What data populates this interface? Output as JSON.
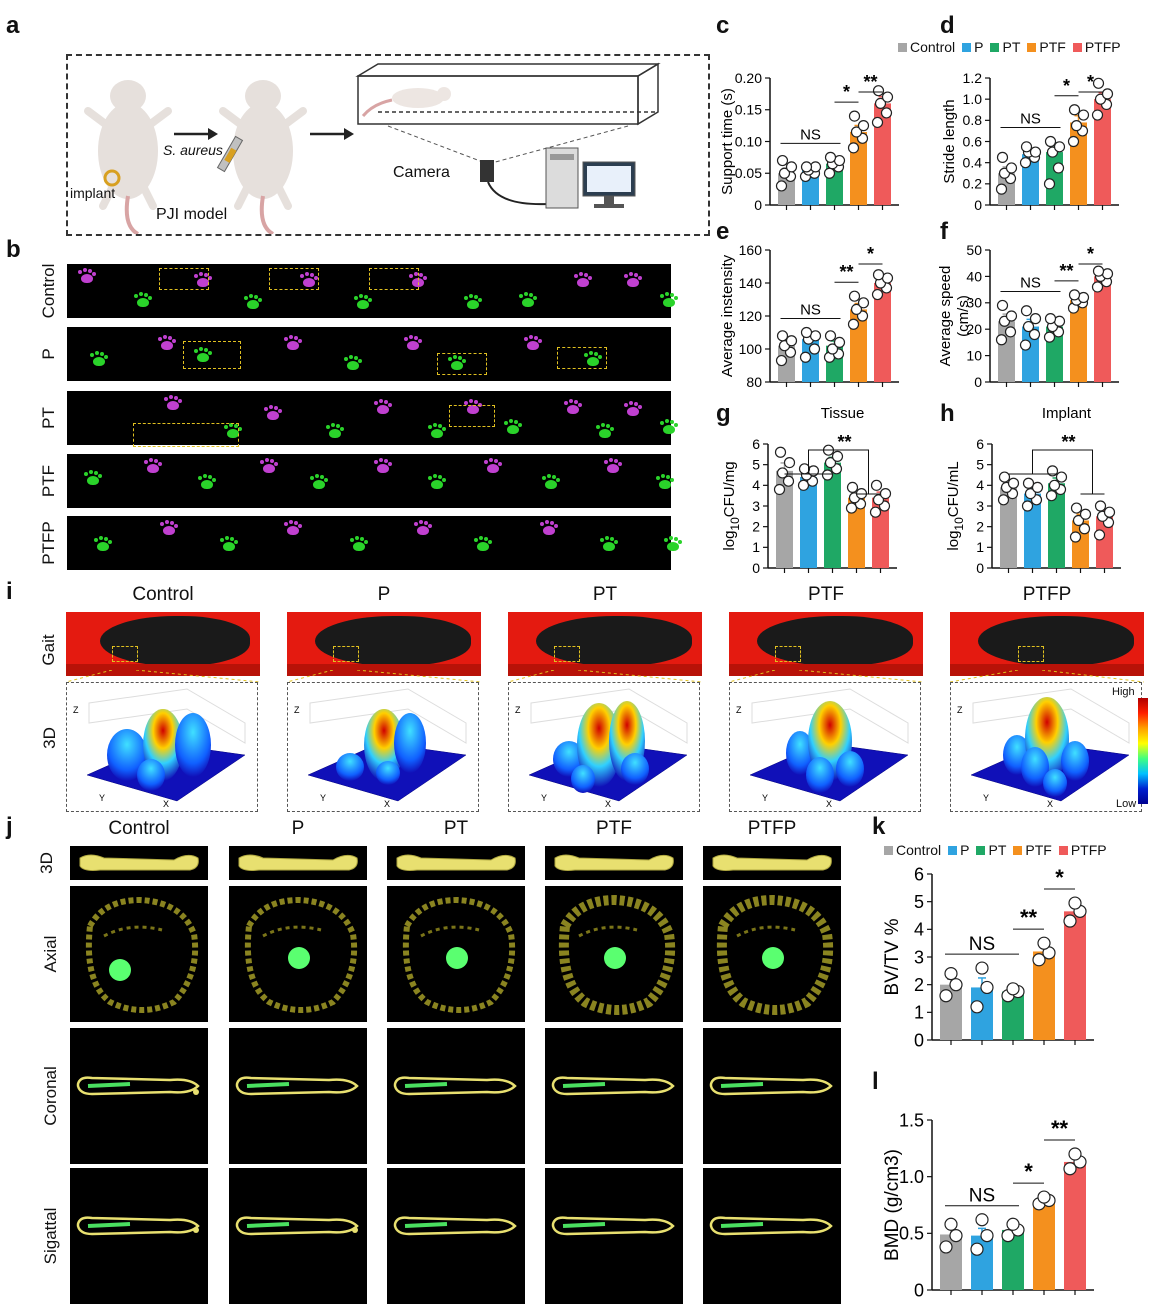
{
  "panel_letters": {
    "a": "a",
    "b": "b",
    "c": "c",
    "d": "d",
    "e": "e",
    "f": "f",
    "g": "g",
    "h": "h",
    "i": "i",
    "j": "j",
    "k": "k",
    "l": "l"
  },
  "panel_a": {
    "pathogen": "S. aureus",
    "implant": "implant",
    "model": "PJI model",
    "camera": "Camera"
  },
  "groups": [
    "Control",
    "P",
    "PT",
    "PTF",
    "PTFP"
  ],
  "colors": {
    "Control": "#a6a6a6",
    "P": "#2fa3e0",
    "PT": "#1fa865",
    "PTF": "#f4901e",
    "PTFP": "#ef5a5a"
  },
  "legend": {
    "items": [
      "Control",
      "P",
      "PT",
      "PTF",
      "PTFP"
    ]
  },
  "panel_i": {
    "row_gait": "Gait",
    "row_3d": "3D",
    "colorbar_high": "High",
    "colorbar_low": "Low",
    "axis_x": "X",
    "axis_y": "Y",
    "axis_z": "Z"
  },
  "panel_j": {
    "rows": [
      "3D",
      "Axial",
      "Coronal",
      "Sigattal"
    ]
  },
  "chart_data": [
    {
      "id": "c",
      "type": "bar",
      "categories": [
        "Control",
        "P",
        "PT",
        "PTF",
        "PTFP"
      ],
      "values": [
        0.05,
        0.055,
        0.065,
        0.115,
        0.16
      ],
      "points": [
        [
          0.03,
          0.045,
          0.05,
          0.06,
          0.07
        ],
        [
          0.045,
          0.05,
          0.055,
          0.06,
          0.06
        ],
        [
          0.05,
          0.06,
          0.065,
          0.07,
          0.075
        ],
        [
          0.09,
          0.105,
          0.115,
          0.125,
          0.14
        ],
        [
          0.13,
          0.145,
          0.16,
          0.17,
          0.18
        ]
      ],
      "ylabel": "Support time (s)",
      "ylim": [
        0,
        0.2
      ],
      "yticks": [
        "0",
        "0.05",
        "0.10",
        "0.15",
        "0.20"
      ],
      "sig": [
        {
          "from": 0,
          "to": 2,
          "text": "NS"
        },
        {
          "from": 2,
          "to": 3,
          "text": "*"
        },
        {
          "from": 3,
          "to": 4,
          "text": "**"
        }
      ]
    },
    {
      "id": "d",
      "type": "bar",
      "categories": [
        "Control",
        "P",
        "PT",
        "PTF",
        "PTFP"
      ],
      "values": [
        0.3,
        0.48,
        0.5,
        0.78,
        1.0
      ],
      "points": [
        [
          0.15,
          0.25,
          0.3,
          0.35,
          0.45
        ],
        [
          0.4,
          0.45,
          0.5,
          0.5,
          0.55
        ],
        [
          0.2,
          0.35,
          0.5,
          0.55,
          0.6
        ],
        [
          0.6,
          0.7,
          0.75,
          0.85,
          0.9
        ],
        [
          0.85,
          0.95,
          1.0,
          1.05,
          1.15
        ]
      ],
      "ylabel": "Stride length",
      "ylim": [
        0,
        1.2
      ],
      "yticks": [
        "0",
        "0.2",
        "0.4",
        "0.6",
        "0.8",
        "1.0",
        "1.2"
      ],
      "sig": [
        {
          "from": 0,
          "to": 2,
          "text": "NS"
        },
        {
          "from": 2,
          "to": 3,
          "text": "*"
        },
        {
          "from": 3,
          "to": 4,
          "text": "*"
        }
      ]
    },
    {
      "id": "e",
      "type": "bar",
      "categories": [
        "Control",
        "P",
        "PT",
        "PTF",
        "PTFP"
      ],
      "values": [
        102,
        106,
        102,
        124,
        140
      ],
      "points": [
        [
          93,
          98,
          102,
          105,
          108
        ],
        [
          95,
          100,
          106,
          108,
          110
        ],
        [
          95,
          97,
          100,
          104,
          108
        ],
        [
          115,
          120,
          124,
          128,
          132
        ],
        [
          133,
          137,
          140,
          143,
          145
        ]
      ],
      "ylabel": "Average instensity",
      "ylim": [
        80,
        160
      ],
      "yticks": [
        "80",
        "100",
        "120",
        "140",
        "160"
      ],
      "sig": [
        {
          "from": 0,
          "to": 2,
          "text": "NS"
        },
        {
          "from": 2,
          "to": 3,
          "text": "**"
        },
        {
          "from": 3,
          "to": 4,
          "text": "*"
        }
      ]
    },
    {
      "id": "f",
      "type": "bar",
      "categories": [
        "Control",
        "P",
        "PT",
        "PTF",
        "PTFP"
      ],
      "values": [
        23,
        21,
        21,
        31,
        40
      ],
      "points": [
        [
          16,
          19,
          23,
          25,
          29
        ],
        [
          14,
          18,
          21,
          24,
          27
        ],
        [
          17,
          19,
          21,
          23,
          24
        ],
        [
          28,
          30,
          31,
          32,
          33
        ],
        [
          36,
          38,
          40,
          41,
          42
        ]
      ],
      "ylabel": "Average speed (cm/s)",
      "ylabel_lines": [
        "Average speed",
        "(cm/s)"
      ],
      "ylim": [
        0,
        50
      ],
      "yticks": [
        "0",
        "10",
        "20",
        "30",
        "40",
        "50"
      ],
      "sig": [
        {
          "from": 0,
          "to": 2,
          "text": "NS"
        },
        {
          "from": 2,
          "to": 3,
          "text": "**"
        },
        {
          "from": 3,
          "to": 4,
          "text": "*"
        }
      ]
    },
    {
      "id": "g",
      "type": "bar",
      "title": "Tissue",
      "categories": [
        "Control",
        "P",
        "PT",
        "PTF",
        "PTFP"
      ],
      "values": [
        4.7,
        4.4,
        5.1,
        3.4,
        3.4
      ],
      "points": [
        [
          3.8,
          4.2,
          4.6,
          5.1,
          5.6
        ],
        [
          4.0,
          4.2,
          4.5,
          4.7,
          4.8
        ],
        [
          4.5,
          4.8,
          5.1,
          5.4,
          5.7
        ],
        [
          2.9,
          3.1,
          3.4,
          3.6,
          3.9
        ],
        [
          2.7,
          3.0,
          3.3,
          3.6,
          4.0
        ]
      ],
      "ylabel": "log10CFU/mg",
      "ylabel_base": "log",
      "ylabel_sub": "10",
      "ylabel_rest": "CFU/mg",
      "ylim": [
        0,
        6
      ],
      "yticks": [
        "0",
        "1",
        "2",
        "3",
        "4",
        "5",
        "6"
      ],
      "sig": [
        {
          "text": "**"
        }
      ]
    },
    {
      "id": "h",
      "type": "bar",
      "title": "Implant",
      "categories": [
        "Control",
        "P",
        "PT",
        "PTF",
        "PTFP"
      ],
      "values": [
        3.9,
        3.6,
        4.1,
        2.3,
        2.5
      ],
      "points": [
        [
          3.3,
          3.6,
          3.9,
          4.1,
          4.4
        ],
        [
          3.0,
          3.3,
          3.6,
          3.9,
          4.1
        ],
        [
          3.5,
          3.8,
          4.0,
          4.4,
          4.7
        ],
        [
          1.5,
          1.9,
          2.3,
          2.6,
          2.9
        ],
        [
          1.6,
          2.2,
          2.5,
          2.7,
          3.0
        ]
      ],
      "ylabel": "log10CFU/mL",
      "ylabel_base": "log",
      "ylabel_sub": "10",
      "ylabel_rest": "CFU/mL",
      "ylim": [
        0,
        6
      ],
      "yticks": [
        "0",
        "1",
        "2",
        "3",
        "4",
        "5",
        "6"
      ],
      "sig": [
        {
          "text": "**"
        }
      ]
    },
    {
      "id": "k",
      "type": "bar",
      "categories": [
        "Control",
        "P",
        "PT",
        "PTF",
        "PTFP"
      ],
      "values": [
        2.0,
        1.9,
        1.75,
        3.2,
        4.65
      ],
      "points": [
        [
          1.6,
          2.0,
          2.4
        ],
        [
          1.2,
          1.9,
          2.6
        ],
        [
          1.6,
          1.75,
          1.85
        ],
        [
          2.9,
          3.15,
          3.5
        ],
        [
          4.3,
          4.65,
          4.95
        ]
      ],
      "ylabel": "BV/TV %",
      "ylim": [
        0,
        6
      ],
      "yticks": [
        "0",
        "1",
        "2",
        "3",
        "4",
        "5",
        "6"
      ],
      "sig": [
        {
          "from": 0,
          "to": 2,
          "text": "NS"
        },
        {
          "from": 2,
          "to": 3,
          "text": "**"
        },
        {
          "from": 3,
          "to": 4,
          "text": "*"
        }
      ]
    },
    {
      "id": "l",
      "type": "bar",
      "categories": [
        "Control",
        "P",
        "PT",
        "PTF",
        "PTFP"
      ],
      "values": [
        0.49,
        0.48,
        0.53,
        0.79,
        1.13
      ],
      "points": [
        [
          0.38,
          0.48,
          0.58
        ],
        [
          0.36,
          0.48,
          0.62
        ],
        [
          0.48,
          0.53,
          0.58
        ],
        [
          0.76,
          0.79,
          0.82
        ],
        [
          1.07,
          1.13,
          1.2
        ]
      ],
      "ylabel": "BMD (g/cm3)",
      "ylim": [
        0,
        1.5
      ],
      "yticks": [
        "0",
        "0.5",
        "1.0",
        "1.5"
      ],
      "sig": [
        {
          "from": 0,
          "to": 2,
          "text": "NS"
        },
        {
          "from": 2,
          "to": 3,
          "text": "*"
        },
        {
          "from": 3,
          "to": 4,
          "text": "**"
        }
      ]
    }
  ]
}
